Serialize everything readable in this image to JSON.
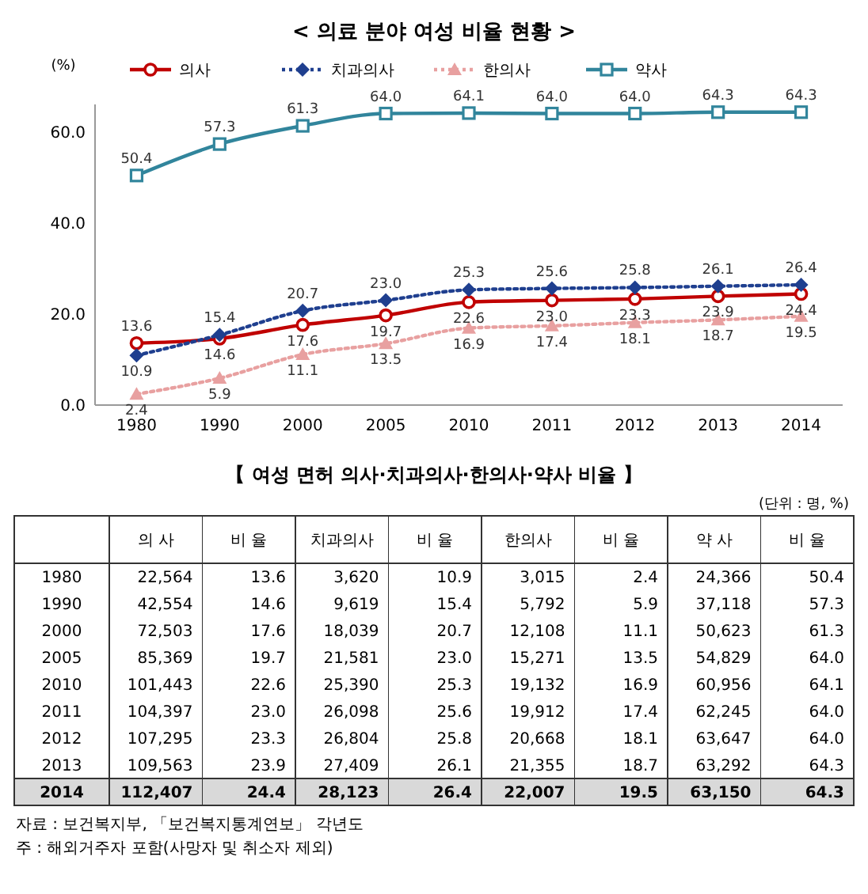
{
  "chart_data": [
    {
      "type": "line",
      "title": "< 의료 분야 여성 비율 현황 >",
      "ylabel": "(%)",
      "categories": [
        "1980",
        "1990",
        "2000",
        "2005",
        "2010",
        "2011",
        "2012",
        "2013",
        "2014"
      ],
      "ylim": [
        0,
        66
      ],
      "yticks": [
        {
          "value": 0,
          "label": "0.0"
        },
        {
          "value": 20,
          "label": "20.0"
        },
        {
          "value": 40,
          "label": "40.0"
        },
        {
          "value": 60,
          "label": "60.0"
        }
      ],
      "legend": "top",
      "series": [
        {
          "name": "의사",
          "color": "#c00000",
          "marker": "circle",
          "line_style": "solid",
          "values": [
            13.6,
            14.6,
            17.6,
            19.7,
            22.6,
            23.0,
            23.3,
            23.9,
            24.4
          ],
          "value_labels": [
            "13.6",
            "14.6",
            "17.6",
            "19.7",
            "22.6",
            "23.0",
            "23.3",
            "23.9",
            "24.4"
          ]
        },
        {
          "name": "치과의사",
          "color": "#1f3f8f",
          "marker": "diamond",
          "line_style": "dotted",
          "values": [
            10.9,
            15.4,
            20.7,
            23.0,
            25.3,
            25.6,
            25.8,
            26.1,
            26.4
          ],
          "value_labels": [
            "10.9",
            "15.4",
            "20.7",
            "23.0",
            "25.3",
            "25.6",
            "25.8",
            "26.1",
            "26.4"
          ]
        },
        {
          "name": "한의사",
          "color": "#e8a0a0",
          "marker": "triangle",
          "line_style": "dotted",
          "values": [
            2.4,
            5.9,
            11.1,
            13.5,
            16.9,
            17.4,
            18.1,
            18.7,
            19.5
          ],
          "value_labels": [
            "2.4",
            "5.9",
            "11.1",
            "13.5",
            "16.9",
            "17.4",
            "18.1",
            "18.7",
            "19.5"
          ]
        },
        {
          "name": "약사",
          "color": "#31859c",
          "marker": "square",
          "line_style": "solid",
          "values": [
            50.4,
            57.3,
            61.3,
            64.0,
            64.1,
            64.0,
            64.0,
            64.3,
            64.3
          ],
          "value_labels": [
            "50.4",
            "57.3",
            "61.3",
            "64.0",
            "64.1",
            "64.0",
            "64.0",
            "64.3",
            "64.3"
          ]
        }
      ]
    },
    {
      "type": "other",
      "title": "【 여성 면허 의사·치과의사·한의사·약사 비율 】",
      "categories": [
        "의 사",
        "비 율",
        "치과의사",
        "비 율",
        "한의사",
        "비 율",
        "약 사",
        "비 율"
      ],
      "y_categories": [
        "1980",
        "1990",
        "2000",
        "2005",
        "2010",
        "2011",
        "2012",
        "2013",
        "2014"
      ],
      "cells": [
        [
          "22,564",
          "13.6",
          "3,620",
          "10.9",
          "3,015",
          "2.4",
          "24,366",
          "50.4"
        ],
        [
          "42,554",
          "14.6",
          "9,619",
          "15.4",
          "5,792",
          "5.9",
          "37,118",
          "57.3"
        ],
        [
          "72,503",
          "17.6",
          "18,039",
          "20.7",
          "12,108",
          "11.1",
          "50,623",
          "61.3"
        ],
        [
          "85,369",
          "19.7",
          "21,581",
          "23.0",
          "15,271",
          "13.5",
          "54,829",
          "64.0"
        ],
        [
          "101,443",
          "22.6",
          "25,390",
          "25.3",
          "19,132",
          "16.9",
          "60,956",
          "64.1"
        ],
        [
          "104,397",
          "23.0",
          "26,098",
          "25.6",
          "19,912",
          "17.4",
          "62,245",
          "64.0"
        ],
        [
          "107,295",
          "23.3",
          "26,804",
          "25.8",
          "20,668",
          "18.1",
          "63,647",
          "64.0"
        ],
        [
          "109,563",
          "23.9",
          "27,409",
          "26.1",
          "21,355",
          "18.7",
          "63,292",
          "64.3"
        ],
        [
          "112,407",
          "24.4",
          "28,123",
          "26.4",
          "22,007",
          "19.5",
          "63,150",
          "64.3"
        ]
      ],
      "annotations": [
        "(단위 : 명, %)",
        "자료 : 보건복지부, 「보건복지통계연보」 각년도",
        "주 : 해외거주자 포함(사망자 및 취소자 제외)"
      ]
    }
  ]
}
